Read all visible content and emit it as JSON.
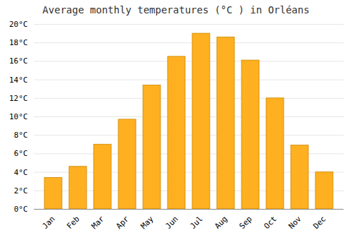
{
  "chart_data": {
    "type": "bar",
    "title": "Average monthly temperatures (°C ) in Orléans",
    "categories": [
      "Jan",
      "Feb",
      "Mar",
      "Apr",
      "May",
      "Jun",
      "Jul",
      "Aug",
      "Sep",
      "Oct",
      "Nov",
      "Dec"
    ],
    "values": [
      3.4,
      4.6,
      7.0,
      9.7,
      13.4,
      16.5,
      19.0,
      18.6,
      16.1,
      12.0,
      6.9,
      4.0
    ],
    "color": "#FFB020",
    "ylim": [
      0,
      20
    ],
    "yticks": [
      {
        "value": 0,
        "label": "0°C"
      },
      {
        "value": 2,
        "label": "2°C"
      },
      {
        "value": 4,
        "label": "4°C"
      },
      {
        "value": 6,
        "label": "6°C"
      },
      {
        "value": 8,
        "label": "8°C"
      },
      {
        "value": 10,
        "label": "10°C"
      },
      {
        "value": 12,
        "label": "12°C"
      },
      {
        "value": 14,
        "label": "14°C"
      },
      {
        "value": 16,
        "label": "16°C"
      },
      {
        "value": 18,
        "label": "18°C"
      },
      {
        "value": 20,
        "label": "20°C"
      }
    ],
    "grid": true
  }
}
